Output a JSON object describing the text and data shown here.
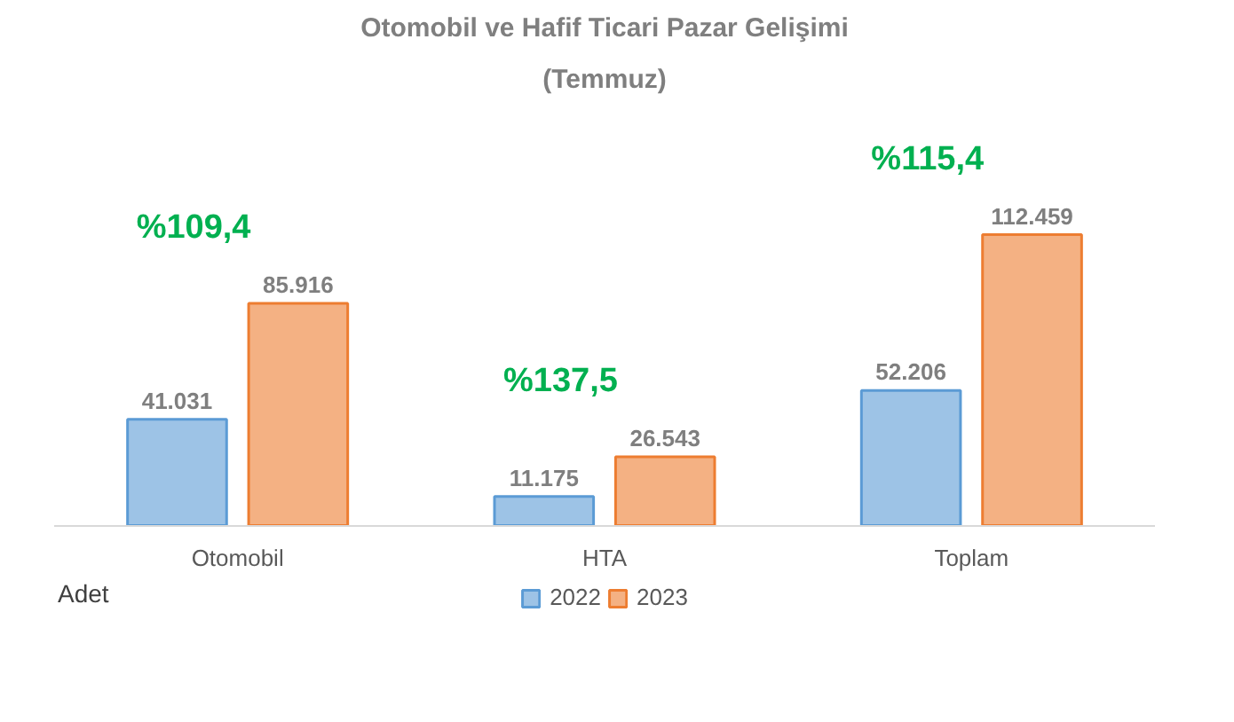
{
  "chart_data": {
    "type": "bar",
    "title": "Otomobil ve Hafif Ticari Pazar Gelişimi",
    "subtitle": "(Temmuz)",
    "categories": [
      "Otomobil",
      "HTA",
      "Toplam"
    ],
    "series": [
      {
        "name": "2022",
        "color": "#9dc3e6",
        "values": [
          41031,
          11175,
          52206
        ],
        "value_labels": [
          "41.031",
          "11.175",
          "52.206"
        ]
      },
      {
        "name": "2023",
        "color": "#f4b183",
        "values": [
          85916,
          26543,
          112459
        ],
        "value_labels": [
          "85.916",
          "26.543",
          "112.459"
        ]
      }
    ],
    "annotations": [
      "%109,4",
      "%137,5",
      "%115,4",
      "Adet"
    ],
    "legend": "bottom"
  }
}
